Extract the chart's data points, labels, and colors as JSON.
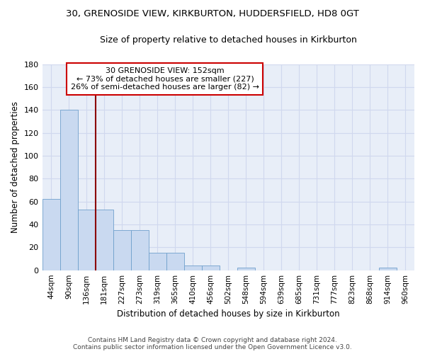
{
  "title1": "30, GRENOSIDE VIEW, KIRKBURTON, HUDDERSFIELD, HD8 0GT",
  "title2": "Size of property relative to detached houses in Kirkburton",
  "xlabel": "Distribution of detached houses by size in Kirkburton",
  "ylabel": "Number of detached properties",
  "footer1": "Contains HM Land Registry data © Crown copyright and database right 2024.",
  "footer2": "Contains public sector information licensed under the Open Government Licence v3.0.",
  "annotation_line1": "30 GRENOSIDE VIEW: 152sqm",
  "annotation_line2": "← 73% of detached houses are smaller (227)",
  "annotation_line3": "26% of semi-detached houses are larger (82) →",
  "bar_values": [
    62,
    140,
    53,
    53,
    35,
    35,
    15,
    15,
    4,
    4,
    0,
    2,
    0,
    0,
    0,
    0,
    0,
    0,
    0,
    2,
    0
  ],
  "categories": [
    "44sqm",
    "90sqm",
    "136sqm",
    "181sqm",
    "227sqm",
    "273sqm",
    "319sqm",
    "365sqm",
    "410sqm",
    "456sqm",
    "502sqm",
    "548sqm",
    "594sqm",
    "639sqm",
    "685sqm",
    "731sqm",
    "777sqm",
    "823sqm",
    "868sqm",
    "914sqm",
    "960sqm"
  ],
  "bar_color": "#c9d9f0",
  "bar_edge_color": "#6fa0cc",
  "bg_color": "#e8eef8",
  "grid_color": "#d0d8ee",
  "vline_color": "#8b0000",
  "vline_x": 2.5,
  "annotation_box_color": "#ffffff",
  "annotation_box_edge": "#cc0000",
  "fig_bg": "#ffffff",
  "ylim": [
    0,
    180
  ],
  "yticks": [
    0,
    20,
    40,
    60,
    80,
    100,
    120,
    140,
    160,
    180
  ]
}
